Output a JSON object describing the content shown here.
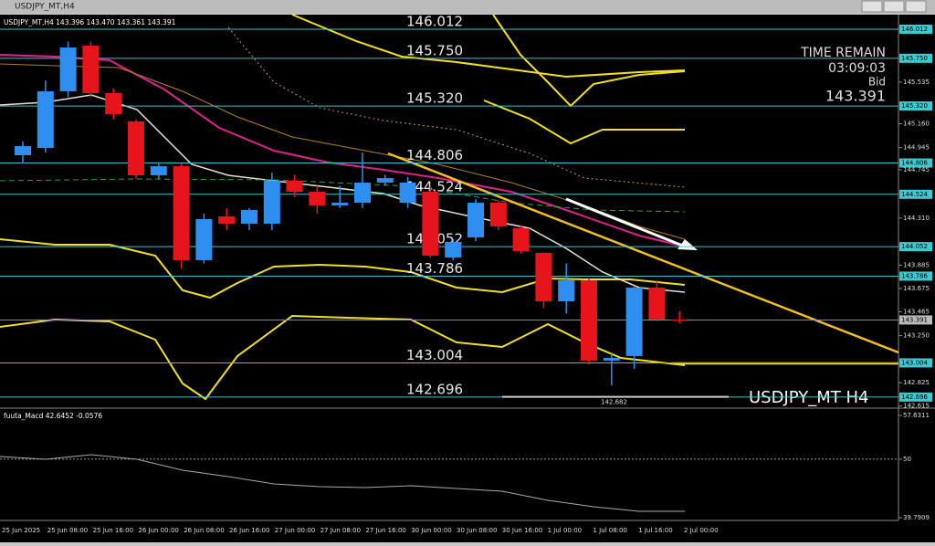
{
  "window": {
    "title": "USDJPY_MT,H4"
  },
  "chart_data": {
    "type": "candlestick",
    "info": "USDJPY_MT,H4 143.396 143.470 143.361 143.391",
    "watermark": "USDJPY_MT H4",
    "open": [
      144.876,
      144.942,
      145.452,
      145.864,
      145.436,
      145.181,
      144.695,
      144.777,
      143.93,
      144.325,
      144.259,
      144.259,
      144.646,
      144.547,
      144.424,
      144.448,
      144.629,
      144.448,
      144.547,
      143.954,
      144.135,
      144.448,
      144.218,
      143.996,
      143.559,
      143.749,
      143.025,
      143.066,
      143.683,
      143.396
    ],
    "high": [
      145.0,
      145.55,
      145.9,
      145.9,
      145.48,
      145.2,
      144.8,
      144.8,
      144.35,
      144.4,
      144.4,
      144.72,
      144.7,
      144.6,
      144.6,
      144.9,
      144.7,
      144.68,
      144.6,
      144.12,
      144.48,
      144.47,
      144.24,
      144.0,
      143.9,
      143.77,
      143.1,
      143.7,
      143.75,
      143.47
    ],
    "low": [
      144.8,
      144.9,
      145.4,
      145.4,
      145.2,
      144.66,
      144.66,
      143.85,
      143.9,
      144.2,
      144.2,
      144.2,
      144.5,
      144.35,
      144.4,
      144.4,
      144.6,
      144.4,
      143.95,
      143.93,
      144.1,
      144.2,
      143.99,
      143.5,
      143.45,
      142.99,
      142.8,
      142.95,
      143.38,
      143.361
    ],
    "close": [
      144.958,
      145.452,
      145.847,
      145.436,
      145.247,
      144.695,
      144.777,
      143.93,
      144.3,
      144.259,
      144.382,
      144.646,
      144.547,
      144.424,
      144.448,
      144.629,
      144.67,
      144.629,
      143.971,
      144.094,
      144.448,
      144.234,
      144.012,
      143.559,
      143.749,
      143.025,
      143.049,
      143.683,
      143.395,
      143.391
    ],
    "up_color": "#2f8ff0",
    "down_color": "#e8141c",
    "ylim": [
      142.588,
      146.226
    ],
    "levels": [
      {
        "value": 146.012,
        "label": "146.012"
      },
      {
        "value": 145.75,
        "label": "145.750"
      },
      {
        "value": 145.32,
        "label": "145.320"
      },
      {
        "value": 144.806,
        "label": "144.806"
      },
      {
        "value": 144.524,
        "label": "144.524"
      },
      {
        "value": 144.052,
        "label": "144.052"
      },
      {
        "value": 143.786,
        "label": "143.786"
      },
      {
        "value": 143.004,
        "label": "143.004"
      },
      {
        "value": 142.696,
        "label": "142.696"
      }
    ],
    "yticks": [
      {
        "value": 145.535,
        "label": "145.535"
      },
      {
        "value": 145.16,
        "label": "145.160"
      },
      {
        "value": 144.945,
        "label": "144.945"
      },
      {
        "value": 144.745,
        "label": "144.745"
      },
      {
        "value": 144.31,
        "label": "144.310"
      },
      {
        "value": 143.885,
        "label": "143.885"
      },
      {
        "value": 143.675,
        "label": "143.675"
      },
      {
        "value": 143.465,
        "label": "143.465"
      },
      {
        "value": 143.25,
        "label": "143.250"
      },
      {
        "value": 142.825,
        "label": "142.825"
      },
      {
        "value": 142.615,
        "label": "142.615"
      }
    ],
    "bid": 143.391,
    "low_mark": 142.682,
    "time_remain_title": "TIME REMAIN",
    "time_remain": "03:09:03",
    "bid_label": "Bid",
    "xticks": [
      "25 Jun 2025",
      "25 Jun 08:00",
      "25 Jun 16:00",
      "26 Jun 00:00",
      "26 Jun 08:00",
      "26 Jun 16:00",
      "27 Jun 00:00",
      "27 Jun 08:00",
      "27 Jun 16:00",
      "30 Jun 00:00",
      "30 Jun 08:00",
      "30 Jun 16:00",
      "1 Jul 00:00",
      "1 Jul 08:00",
      "1 Jul 16:00",
      "2 Jul 00:00"
    ],
    "macd": {
      "label": "fuuta_Macd 42.6452 -0.0576",
      "ylim": [
        39.7909,
        57.6311
      ],
      "yticks": [
        57.6311,
        50,
        39.7909
      ]
    }
  }
}
